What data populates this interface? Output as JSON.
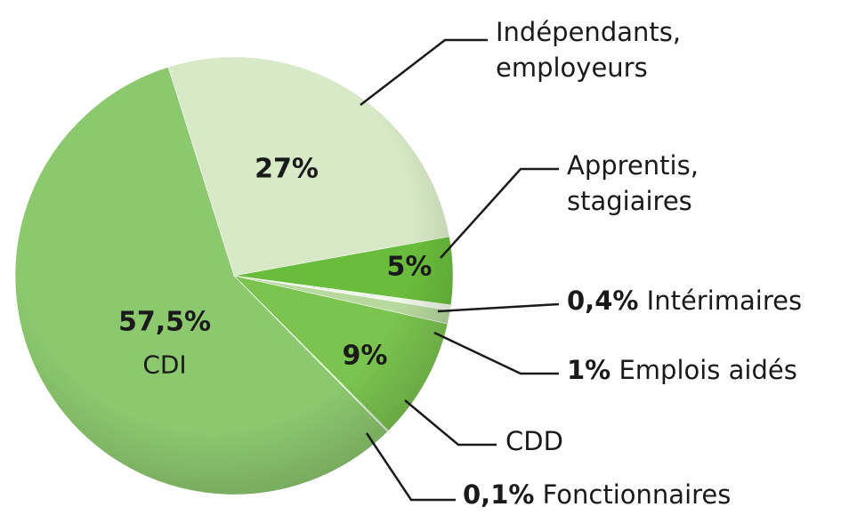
{
  "chart_data": {
    "type": "pie",
    "categories": [
      "Indépendants, employeurs",
      "Apprentis, stagiaires",
      "Intérimaires",
      "Emplois aidés",
      "CDD",
      "Fonctionnaires",
      "CDI"
    ],
    "values": [
      27,
      5,
      0.4,
      1,
      9,
      0.1,
      57.5
    ],
    "value_labels": [
      "27%",
      "5%",
      "0,4%",
      "1%",
      "9%",
      "0,1%",
      "57,5%"
    ],
    "colors": [
      "#d7e9c6",
      "#6abd3c",
      "#eef6e8",
      "#b7d99e",
      "#7bc44f",
      "#c9e2b3",
      "#8cc86e"
    ]
  }
}
